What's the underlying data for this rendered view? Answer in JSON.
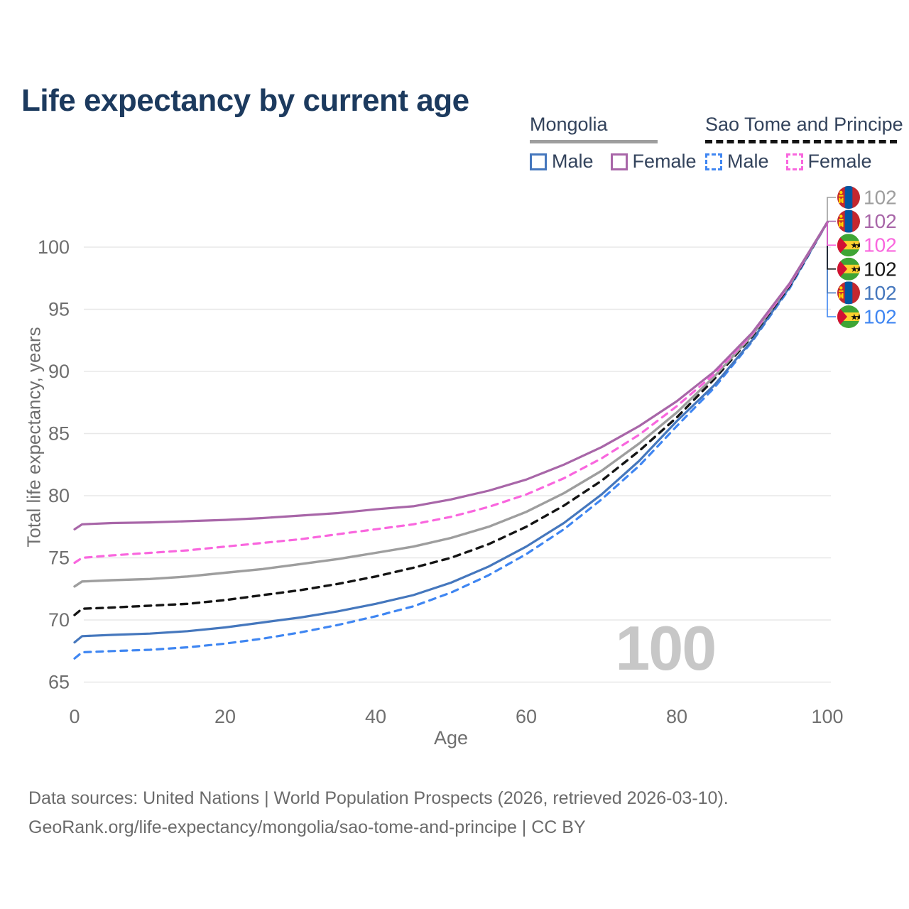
{
  "title": "Life expectancy by current age",
  "legend": {
    "groups": [
      {
        "title": "Mongolia",
        "line_style": "solid",
        "line_color": "#9e9e9e",
        "items": [
          {
            "label": "Male",
            "box_style": "solid",
            "color": "#4577bd"
          },
          {
            "label": "Female",
            "box_style": "solid",
            "color": "#a866a8"
          }
        ]
      },
      {
        "title": "Sao Tome and Principe",
        "line_style": "dashed",
        "line_color": "#141414",
        "items": [
          {
            "label": "Male",
            "box_style": "dashed",
            "color": "#3f86f2"
          },
          {
            "label": "Female",
            "box_style": "dashed",
            "color": "#f966de"
          }
        ]
      }
    ]
  },
  "chart_data": {
    "type": "line",
    "title": "Life expectancy by current age",
    "xlabel": "Age",
    "ylabel": "Total life expectancy, years",
    "xlim": [
      0,
      100
    ],
    "ylim": [
      65,
      102
    ],
    "xticks": [
      0,
      20,
      40,
      60,
      80,
      100
    ],
    "yticks": [
      65,
      70,
      75,
      80,
      85,
      90,
      95,
      100
    ],
    "grid": true,
    "legend_position": "top-right",
    "age_counter": "100",
    "x": [
      0,
      1,
      5,
      10,
      15,
      20,
      25,
      30,
      35,
      40,
      45,
      50,
      55,
      60,
      65,
      70,
      75,
      80,
      85,
      90,
      95,
      100
    ],
    "series": [
      {
        "name": "Sao Tome and Principe Male",
        "country": "Sao Tome and Principe",
        "sex": "Male",
        "color": "#3f86f2",
        "dash": "dashed",
        "flag": "stp",
        "end_label": "102",
        "end_row": 5,
        "values": [
          66.9,
          67.4,
          67.5,
          67.6,
          67.8,
          68.1,
          68.5,
          69.0,
          69.6,
          70.3,
          71.1,
          72.2,
          73.6,
          75.3,
          77.3,
          79.7,
          82.4,
          85.6,
          88.7,
          92.4,
          96.7,
          102
        ]
      },
      {
        "name": "Mongolia Male",
        "country": "Mongolia",
        "sex": "Male",
        "color": "#4577bd",
        "dash": "solid",
        "flag": "mongolia",
        "end_label": "102",
        "end_row": 4,
        "values": [
          68.2,
          68.7,
          68.8,
          68.9,
          69.1,
          69.4,
          69.8,
          70.2,
          70.7,
          71.3,
          72.0,
          73.0,
          74.3,
          75.9,
          77.8,
          80.1,
          82.8,
          86.0,
          88.9,
          92.5,
          96.8,
          102
        ]
      },
      {
        "name": "Sao Tome and Principe",
        "country": "Sao Tome and Principe",
        "sex": "Both",
        "color": "#141414",
        "dash": "dashed",
        "flag": "stp",
        "end_label": "102",
        "end_row": 3,
        "values": [
          70.4,
          70.9,
          71.0,
          71.15,
          71.3,
          71.6,
          72.0,
          72.4,
          72.9,
          73.5,
          74.2,
          75.0,
          76.1,
          77.5,
          79.2,
          81.2,
          83.6,
          86.3,
          89.4,
          92.8,
          96.9,
          102
        ]
      },
      {
        "name": "Mongolia",
        "country": "Mongolia",
        "sex": "Both",
        "color": "#9e9e9e",
        "dash": "solid",
        "flag": "mongolia",
        "end_label": "102",
        "end_row": 0,
        "values": [
          72.7,
          73.1,
          73.2,
          73.3,
          73.5,
          73.8,
          74.1,
          74.5,
          74.9,
          75.4,
          75.9,
          76.6,
          77.5,
          78.7,
          80.2,
          82.0,
          84.2,
          86.7,
          89.6,
          92.9,
          97.0,
          102
        ]
      },
      {
        "name": "Sao Tome and Principe Female",
        "country": "Sao Tome and Principe",
        "sex": "Female",
        "color": "#f966de",
        "dash": "dashed",
        "flag": "stp",
        "end_label": "102",
        "end_row": 2,
        "values": [
          74.6,
          75.0,
          75.2,
          75.4,
          75.6,
          75.9,
          76.2,
          76.5,
          76.9,
          77.3,
          77.7,
          78.3,
          79.1,
          80.1,
          81.4,
          83.0,
          84.9,
          87.2,
          89.8,
          93.0,
          97.0,
          102
        ]
      },
      {
        "name": "Mongolia Female",
        "country": "Mongolia",
        "sex": "Female",
        "color": "#a866a8",
        "dash": "solid",
        "flag": "mongolia",
        "end_label": "102",
        "end_row": 1,
        "values": [
          77.3,
          77.7,
          77.8,
          77.85,
          77.95,
          78.05,
          78.2,
          78.4,
          78.6,
          78.9,
          79.15,
          79.7,
          80.4,
          81.3,
          82.5,
          83.9,
          85.6,
          87.6,
          90.0,
          93.1,
          97.1,
          102
        ]
      }
    ],
    "flag_colors": {
      "mongolia": {
        "red": "#c4272f",
        "blue": "#0157a3",
        "yellow": "#ffd500"
      },
      "stp": {
        "green": "#3fa535",
        "yellow": "#ffd12e",
        "red": "#d21034",
        "black": "#111111"
      }
    }
  },
  "footer": {
    "line1": "Data sources: United Nations | World Population Prospects (2026, retrieved 2026-03-10).",
    "line2": "GeoRank.org/life-expectancy/mongolia/sao-tome-and-principe | CC BY"
  }
}
